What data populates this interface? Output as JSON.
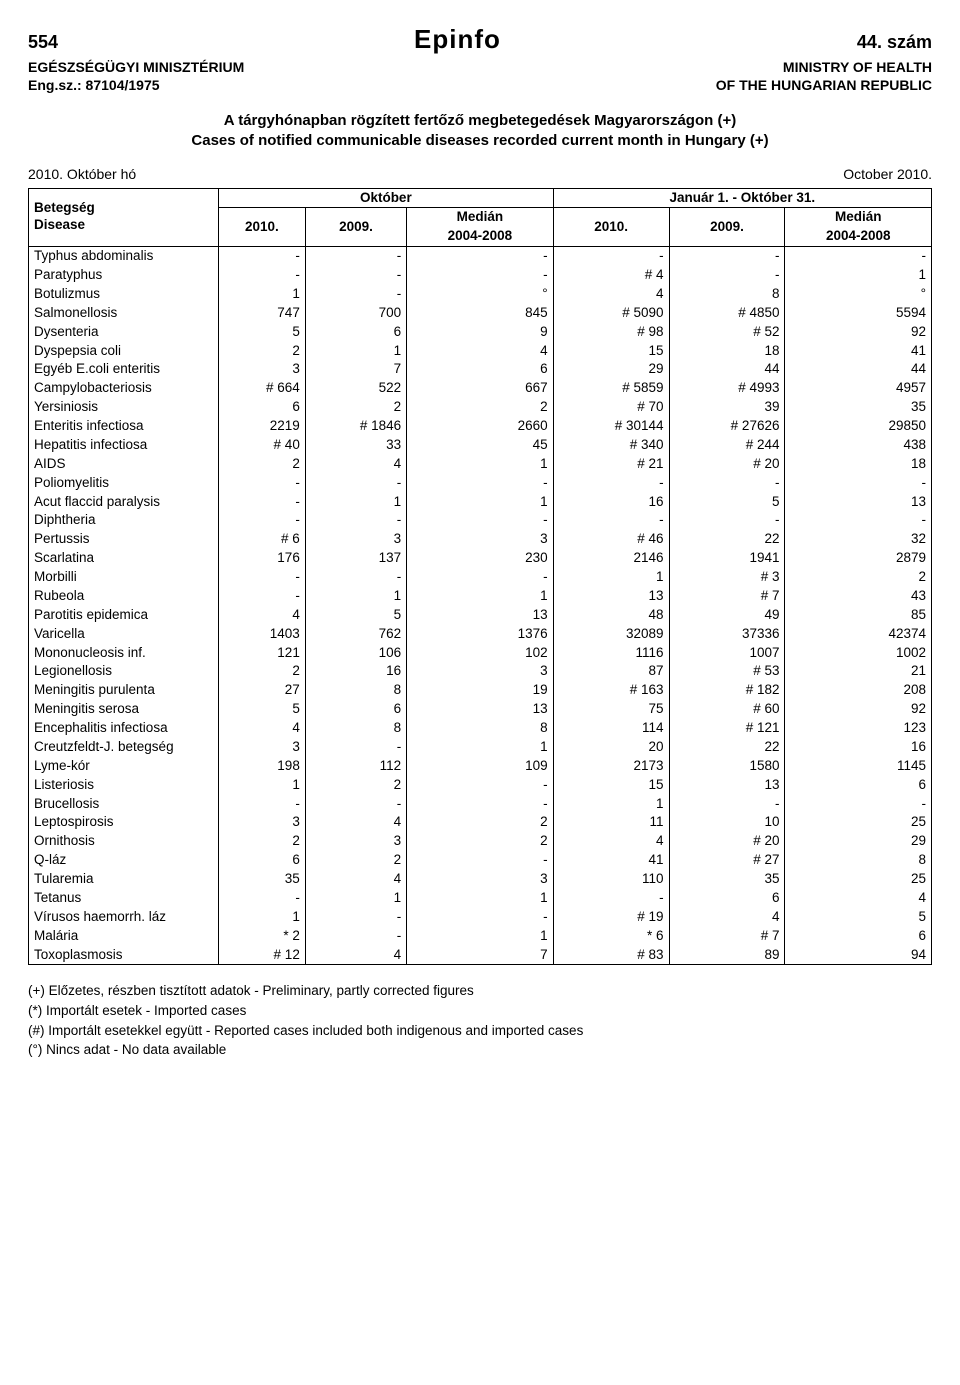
{
  "page_number": "554",
  "brand": "Epinfo",
  "issue": "44. szám",
  "ministry_hu": "EGÉSZSÉGÜGYI MINISZTÉRIUM",
  "ministry_en": "MINISTRY OF HEALTH",
  "ref_hu": "Eng.sz.: 87104/1975",
  "ref_en": "OF THE HUNGARIAN REPUBLIC",
  "title_line1": "A tárgyhónapban rögzített fertőző megbetegedések Magyarországon (+)",
  "title_line2": "Cases of notified communicable diseases recorded current month in Hungary (+)",
  "period_left": "2010. Október hó",
  "period_right": "October 2010.",
  "hdr": {
    "disease_hu": "Betegség",
    "disease_en": "Disease",
    "october": "Október",
    "jan_oct": "Január 1. - Október 31.",
    "y2010": "2010.",
    "y2009": "2009.",
    "median": "Medián",
    "median_range": "2004-2008"
  },
  "rows": [
    {
      "d": "Typhus abdominalis",
      "c": [
        "-",
        "-",
        "-",
        "-",
        "-",
        "-"
      ]
    },
    {
      "d": "Paratyphus",
      "c": [
        "-",
        "-",
        "-",
        "# 4",
        "-",
        "1"
      ]
    },
    {
      "d": "Botulizmus",
      "c": [
        "1",
        "-",
        "°",
        "4",
        "8",
        "°"
      ]
    },
    {
      "d": "Salmonellosis",
      "c": [
        "747",
        "700",
        "845",
        "# 5090",
        "# 4850",
        "5594"
      ]
    },
    {
      "d": "Dysenteria",
      "c": [
        "5",
        "6",
        "9",
        "# 98",
        "# 52",
        "92"
      ]
    },
    {
      "d": "Dyspepsia coli",
      "c": [
        "2",
        "1",
        "4",
        "15",
        "18",
        "41"
      ]
    },
    {
      "d": "Egyéb E.coli enteritis",
      "c": [
        "3",
        "7",
        "6",
        "29",
        "44",
        "44"
      ]
    },
    {
      "d": "Campylobacteriosis",
      "c": [
        "# 664",
        "522",
        "667",
        "# 5859",
        "# 4993",
        "4957"
      ]
    },
    {
      "d": "Yersiniosis",
      "c": [
        "6",
        "2",
        "2",
        "# 70",
        "39",
        "35"
      ]
    },
    {
      "d": "Enteritis infectiosa",
      "c": [
        "2219",
        "# 1846",
        "2660",
        "# 30144",
        "# 27626",
        "29850"
      ]
    },
    {
      "d": "Hepatitis infectiosa",
      "c": [
        "# 40",
        "33",
        "45",
        "# 340",
        "# 244",
        "438"
      ]
    },
    {
      "d": "AIDS",
      "c": [
        "2",
        "4",
        "1",
        "# 21",
        "# 20",
        "18"
      ]
    },
    {
      "d": "Poliomyelitis",
      "c": [
        "-",
        "-",
        "-",
        "-",
        "-",
        "-"
      ]
    },
    {
      "d": "Acut flaccid paralysis",
      "c": [
        "-",
        "1",
        "1",
        "16",
        "5",
        "13"
      ]
    },
    {
      "d": "Diphtheria",
      "c": [
        "-",
        "-",
        "-",
        "-",
        "-",
        "-"
      ]
    },
    {
      "d": "Pertussis",
      "c": [
        "# 6",
        "3",
        "3",
        "# 46",
        "22",
        "32"
      ]
    },
    {
      "d": "Scarlatina",
      "c": [
        "176",
        "137",
        "230",
        "2146",
        "1941",
        "2879"
      ]
    },
    {
      "d": "Morbilli",
      "c": [
        "-",
        "-",
        "-",
        "1",
        "# 3",
        "2"
      ]
    },
    {
      "d": "Rubeola",
      "c": [
        "-",
        "1",
        "1",
        "13",
        "# 7",
        "43"
      ]
    },
    {
      "d": "Parotitis epidemica",
      "c": [
        "4",
        "5",
        "13",
        "48",
        "49",
        "85"
      ]
    },
    {
      "d": "Varicella",
      "c": [
        "1403",
        "762",
        "1376",
        "32089",
        "37336",
        "42374"
      ]
    },
    {
      "d": "Mononucleosis inf.",
      "c": [
        "121",
        "106",
        "102",
        "1116",
        "1007",
        "1002"
      ]
    },
    {
      "d": "Legionellosis",
      "c": [
        "2",
        "16",
        "3",
        "87",
        "# 53",
        "21"
      ]
    },
    {
      "d": "Meningitis purulenta",
      "c": [
        "27",
        "8",
        "19",
        "# 163",
        "# 182",
        "208"
      ]
    },
    {
      "d": "Meningitis serosa",
      "c": [
        "5",
        "6",
        "13",
        "75",
        "# 60",
        "92"
      ]
    },
    {
      "d": "Encephalitis infectiosa",
      "c": [
        "4",
        "8",
        "8",
        "114",
        "# 121",
        "123"
      ]
    },
    {
      "d": "Creutzfeldt-J. betegség",
      "c": [
        "3",
        "-",
        "1",
        "20",
        "22",
        "16"
      ]
    },
    {
      "d": "Lyme-kór",
      "c": [
        "198",
        "112",
        "109",
        "2173",
        "1580",
        "1145"
      ]
    },
    {
      "d": "Listeriosis",
      "c": [
        "1",
        "2",
        "-",
        "15",
        "13",
        "6"
      ]
    },
    {
      "d": "Brucellosis",
      "c": [
        "-",
        "-",
        "-",
        "1",
        "-",
        "-"
      ]
    },
    {
      "d": "Leptospirosis",
      "c": [
        "3",
        "4",
        "2",
        "11",
        "10",
        "25"
      ]
    },
    {
      "d": "Ornithosis",
      "c": [
        "2",
        "3",
        "2",
        "4",
        "# 20",
        "29"
      ]
    },
    {
      "d": "Q-láz",
      "c": [
        "6",
        "2",
        "-",
        "41",
        "# 27",
        "8"
      ]
    },
    {
      "d": "Tularemia",
      "c": [
        "35",
        "4",
        "3",
        "110",
        "35",
        "25"
      ]
    },
    {
      "d": "Tetanus",
      "c": [
        "-",
        "1",
        "1",
        "-",
        "6",
        "4"
      ]
    },
    {
      "d": "Vírusos haemorrh. láz",
      "c": [
        "1",
        "-",
        "-",
        "# 19",
        "4",
        "5"
      ]
    },
    {
      "d": "Malária",
      "c": [
        "* 2",
        "-",
        "1",
        "* 6",
        "# 7",
        "6"
      ]
    },
    {
      "d": "Toxoplasmosis",
      "c": [
        "# 12",
        "4",
        "7",
        "# 83",
        "89",
        "94"
      ]
    }
  ],
  "footnotes": [
    "(+) Előzetes, részben tisztított adatok - Preliminary, partly corrected figures",
    "(*) Importált esetek - Imported cases",
    "(#) Importált esetekkel együtt - Reported cases included both indigenous and imported cases",
    "(°) Nincs adat - No data available"
  ]
}
